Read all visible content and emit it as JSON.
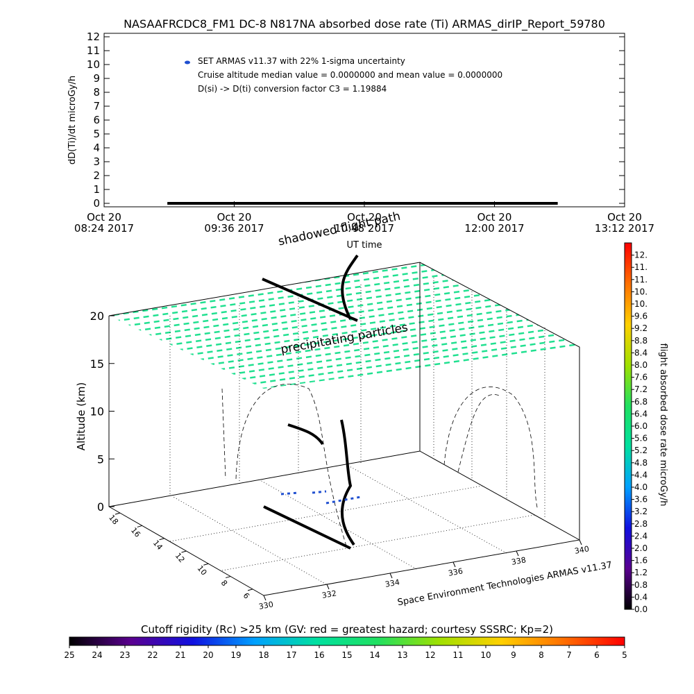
{
  "chart_data": [
    {
      "type": "line",
      "title": "NASAAFRCDC8_FM1 DC-8   N817NA absorbed dose rate (Ti) ARMAS_dirIP_Report_59780",
      "ylabel": "dD(Ti)/dt microGy/h",
      "xlabel": "UT time",
      "x": [
        "08:59",
        "09:30",
        "10:00",
        "10:30",
        "11:00",
        "11:30",
        "12:00",
        "12:35"
      ],
      "series": [
        {
          "name": "SET ARMAS v11.37 with 22% 1-sigma uncertainty",
          "color": "#000000",
          "marker_color": "#1f4fd0",
          "values": [
            0,
            0,
            0,
            0,
            0,
            0,
            0,
            0
          ]
        }
      ],
      "annotations": [
        "Cruise altitude median value = 0.0000000 and mean value = 0.0000000",
        "D(si) -> D(ti) conversion factor C3 = 1.19884"
      ],
      "xlim": [
        "08:24",
        "13:12"
      ],
      "xticks": [
        {
          "value": "08:24",
          "label": [
            "Oct 20",
            "08:24 2017"
          ]
        },
        {
          "value": "09:36",
          "label": [
            "Oct 20",
            "09:36 2017"
          ]
        },
        {
          "value": "10:48",
          "label": [
            "Oct 20",
            "10:48 2017"
          ]
        },
        {
          "value": "12:00",
          "label": [
            "Oct 20",
            "12:00 2017"
          ]
        },
        {
          "value": "13:12",
          "label": [
            "Oct 20",
            "13:12 2017"
          ]
        }
      ],
      "ylim": [
        -0.25,
        12.25
      ],
      "yticks": [
        0,
        1,
        2,
        3,
        4,
        5,
        6,
        7,
        8,
        9,
        10,
        11,
        12
      ]
    },
    {
      "type": "scatter3d",
      "zlabel": "Altitude (km)",
      "zlim": [
        0,
        20
      ],
      "zticks": [
        0,
        5,
        10,
        15,
        20
      ],
      "ylim": [
        19,
        5
      ],
      "yticks": [
        18,
        16,
        14,
        12,
        10,
        8,
        6
      ],
      "xlim": [
        330,
        340
      ],
      "xticks": [
        330,
        332,
        334,
        336,
        338,
        340
      ],
      "annotations": [
        "shadowed flight path",
        "precipitating particles"
      ],
      "credit": "Space Environment Technologies ARMAS v11.37",
      "colorbar": {
        "label": "flight absorbed dose rate microGy/h",
        "lim": [
          0,
          12
        ],
        "colors": [
          "#000000",
          "#5a0090",
          "#1010e0",
          "#00a0ff",
          "#00e0a0",
          "#20e060",
          "#a0e000",
          "#ffd000",
          "#ff7000",
          "#ff0000"
        ],
        "ticks": [
          {
            "value": 0,
            "label": "0.0"
          },
          {
            "value": 0.4,
            "label": "0.4"
          },
          {
            "value": 0.8,
            "label": "0.8"
          },
          {
            "value": 1.2,
            "label": "1.2"
          },
          {
            "value": 1.6,
            "label": "1.6"
          },
          {
            "value": 2,
            "label": "2.0"
          },
          {
            "value": 2.4,
            "label": "2.4"
          },
          {
            "value": 2.8,
            "label": "2.8"
          },
          {
            "value": 3.2,
            "label": "3.2"
          },
          {
            "value": 3.6,
            "label": "3.6"
          },
          {
            "value": 4,
            "label": "4.0"
          },
          {
            "value": 4.4,
            "label": "4.4"
          },
          {
            "value": 4.8,
            "label": "4.8"
          },
          {
            "value": 5.2,
            "label": "5.2"
          },
          {
            "value": 5.6,
            "label": "5.6"
          },
          {
            "value": 6,
            "label": "6.0"
          },
          {
            "value": 6.4,
            "label": "6.4"
          },
          {
            "value": 6.8,
            "label": "6.8"
          },
          {
            "value": 7.2,
            "label": "7.2"
          },
          {
            "value": 7.6,
            "label": "7.6"
          },
          {
            "value": 8,
            "label": "8.0"
          },
          {
            "value": 8.4,
            "label": "8.4"
          },
          {
            "value": 8.8,
            "label": "8.8"
          },
          {
            "value": 9.2,
            "label": "9.2"
          },
          {
            "value": 9.6,
            "label": "9.6"
          },
          {
            "value": 10,
            "label": "10."
          },
          {
            "value": 10.4,
            "label": "10."
          },
          {
            "value": 10.8,
            "label": "11."
          },
          {
            "value": 11.2,
            "label": "11."
          },
          {
            "value": 11.6,
            "label": "12."
          }
        ]
      },
      "colorbar2": {
        "label": "Cutoff rigidity (Rc) >25 km (GV: red = greatest hazard; courtesy SSSRC; Kp=2)",
        "lim": [
          25,
          5
        ],
        "colors": [
          "#000000",
          "#5a0090",
          "#1010e0",
          "#00a0ff",
          "#00e0a0",
          "#20e060",
          "#a0e000",
          "#ffd000",
          "#ff7000",
          "#ff0000"
        ],
        "ticks": [
          25,
          24,
          23,
          22,
          21,
          20,
          19,
          18,
          17,
          16,
          15,
          14,
          13,
          12,
          11,
          10,
          9,
          8,
          7,
          6,
          5
        ]
      }
    }
  ]
}
